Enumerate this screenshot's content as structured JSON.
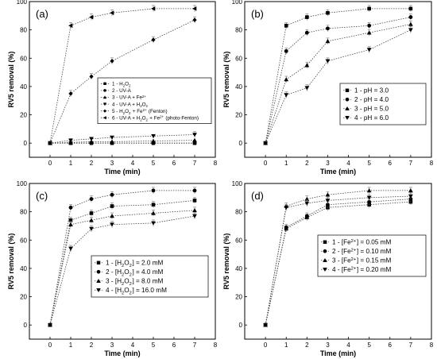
{
  "chart_data": [
    {
      "type": "line",
      "panel_label": "(a)",
      "xlabel": "Time (min)",
      "ylabel": "RV5 removal (%)",
      "xlim": [
        -1,
        8
      ],
      "ylim": [
        -10,
        100
      ],
      "x_ticks": [
        0,
        1,
        2,
        3,
        4,
        5,
        6,
        7,
        8
      ],
      "y_ticks": [
        0,
        20,
        40,
        60,
        80,
        100
      ],
      "legend_position": "center-right",
      "x": [
        0,
        1,
        2,
        3,
        5,
        7
      ],
      "series": [
        {
          "name": "1 - H2O2",
          "marker": "square",
          "values": [
            0,
            0,
            0,
            0,
            0,
            0
          ]
        },
        {
          "name": "2 - UV-A",
          "marker": "circle",
          "values": [
            0,
            0,
            0,
            0,
            0,
            0
          ]
        },
        {
          "name": "3 - UV-A + Fe2+",
          "marker": "triangle-up",
          "values": [
            0,
            0.5,
            1,
            1,
            1.5,
            2
          ]
        },
        {
          "name": "4 - UV-A + H2O2",
          "marker": "triangle-down",
          "values": [
            0,
            2,
            3,
            4,
            5,
            6
          ]
        },
        {
          "name": "5 - H2O2 + Fe2+ (Fenton)",
          "marker": "diamond",
          "values": [
            0,
            35,
            47,
            58,
            73,
            87
          ]
        },
        {
          "name": "6 - UV-A + H2O2 + Fe2+ (photo-Fenton)",
          "marker": "triangle-left",
          "values": [
            0,
            83,
            89,
            92,
            95,
            95
          ]
        }
      ]
    },
    {
      "type": "line",
      "panel_label": "(b)",
      "xlabel": "Time (min)",
      "ylabel": "RV5 removal (%)",
      "xlim": [
        -1,
        8
      ],
      "ylim": [
        -10,
        100
      ],
      "x_ticks": [
        0,
        1,
        2,
        3,
        4,
        5,
        6,
        7,
        8
      ],
      "y_ticks": [
        0,
        20,
        40,
        60,
        80,
        100
      ],
      "legend_position": "center-right",
      "x": [
        0,
        1,
        2,
        3,
        5,
        7
      ],
      "series": [
        {
          "name": "1 - pH = 3.0",
          "marker": "square",
          "values": [
            0,
            83,
            89,
            92,
            95,
            95
          ]
        },
        {
          "name": "2 - pH = 4.0",
          "marker": "circle",
          "values": [
            0,
            65,
            78,
            81,
            83,
            89
          ]
        },
        {
          "name": "3 - pH = 5.0",
          "marker": "triangle-up",
          "values": [
            0,
            45,
            55,
            72,
            78,
            84
          ]
        },
        {
          "name": "4 - pH = 6.0",
          "marker": "triangle-down",
          "values": [
            0,
            34,
            39,
            58,
            66,
            80
          ]
        }
      ]
    },
    {
      "type": "line",
      "panel_label": "(c)",
      "xlabel": "Time (min)",
      "ylabel": "RV5 removal (%)",
      "xlim": [
        -1,
        8
      ],
      "ylim": [
        -10,
        100
      ],
      "x_ticks": [
        0,
        1,
        2,
        3,
        4,
        5,
        6,
        7,
        8
      ],
      "y_ticks": [
        0,
        20,
        40,
        60,
        80,
        100
      ],
      "legend_position": "center-right",
      "x": [
        0,
        1,
        2,
        3,
        5,
        7
      ],
      "series": [
        {
          "name": "1 - [H2O2] = 2.0 mM",
          "marker": "square",
          "values": [
            0,
            74,
            79,
            84,
            85,
            88
          ]
        },
        {
          "name": "2 - [H2O2] = 4.0 mM",
          "marker": "circle",
          "values": [
            0,
            83,
            89,
            92,
            95,
            95
          ]
        },
        {
          "name": "3 - [H2O2] = 8.0 mM",
          "marker": "triangle-up",
          "values": [
            0,
            71,
            74,
            77,
            79,
            81
          ]
        },
        {
          "name": "4 - [H2O2] = 16.0 mM",
          "marker": "triangle-down",
          "values": [
            0,
            54,
            68,
            71,
            72,
            77
          ]
        }
      ]
    },
    {
      "type": "line",
      "panel_label": "(d)",
      "xlabel": "Time (min)",
      "ylabel": "RV5 removal (%)",
      "xlim": [
        -1,
        8
      ],
      "ylim": [
        -10,
        100
      ],
      "x_ticks": [
        0,
        1,
        2,
        3,
        4,
        5,
        6,
        7,
        8
      ],
      "y_ticks": [
        0,
        20,
        40,
        60,
        80,
        100
      ],
      "legend_position": "center-right",
      "x": [
        0,
        1,
        2,
        3,
        5,
        7
      ],
      "series": [
        {
          "name": "1 - [Fe2+] = 0.05 mM",
          "marker": "square",
          "values": [
            0,
            68,
            76,
            83,
            85,
            87
          ]
        },
        {
          "name": "2 - [Fe2+] = 0.10 mM",
          "marker": "circle",
          "values": [
            0,
            69,
            77,
            85,
            87,
            89
          ]
        },
        {
          "name": "3 - [Fe2+] = 0.15 mM",
          "marker": "triangle-up",
          "values": [
            0,
            84,
            89,
            92,
            95,
            95
          ]
        },
        {
          "name": "4 - [Fe2+] = 0.20 mM",
          "marker": "triangle-down",
          "values": [
            0,
            83,
            86,
            88,
            90,
            91
          ]
        }
      ]
    }
  ]
}
